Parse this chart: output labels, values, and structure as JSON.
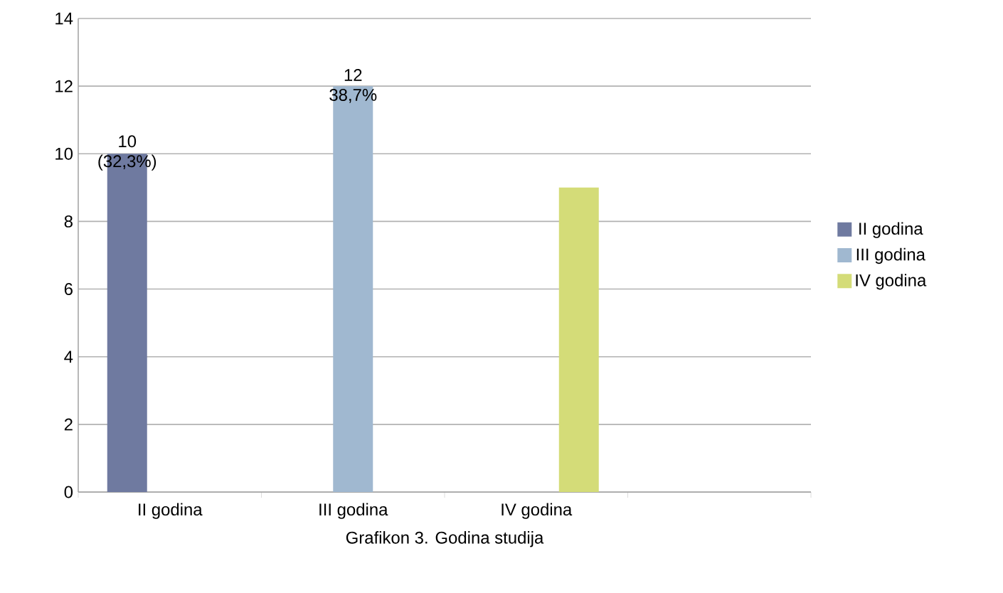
{
  "chart_data": {
    "type": "bar",
    "title": "Grafikon 3. Godina studija",
    "categories": [
      "II godina",
      "III godina",
      "IV godina",
      null
    ],
    "series": [
      {
        "name": "II godina",
        "color": "#6f7aa0",
        "values": [
          10,
          null,
          null,
          null
        ],
        "value_labels": [
          "10 (32,3%)",
          null,
          null,
          null
        ]
      },
      {
        "name": "III godina",
        "color": "#a0b8d0",
        "values": [
          null,
          12,
          null,
          null
        ],
        "value_labels": [
          null,
          "12 38,7%",
          null,
          null
        ]
      },
      {
        "name": "IV godina",
        "color": "#d4dc78",
        "values": [
          null,
          null,
          9,
          null
        ]
      }
    ],
    "ylim": [
      0,
      14
    ],
    "yticks": [
      0,
      2,
      4,
      6,
      8,
      10,
      12,
      14
    ],
    "grid": "y",
    "legend": "right"
  }
}
